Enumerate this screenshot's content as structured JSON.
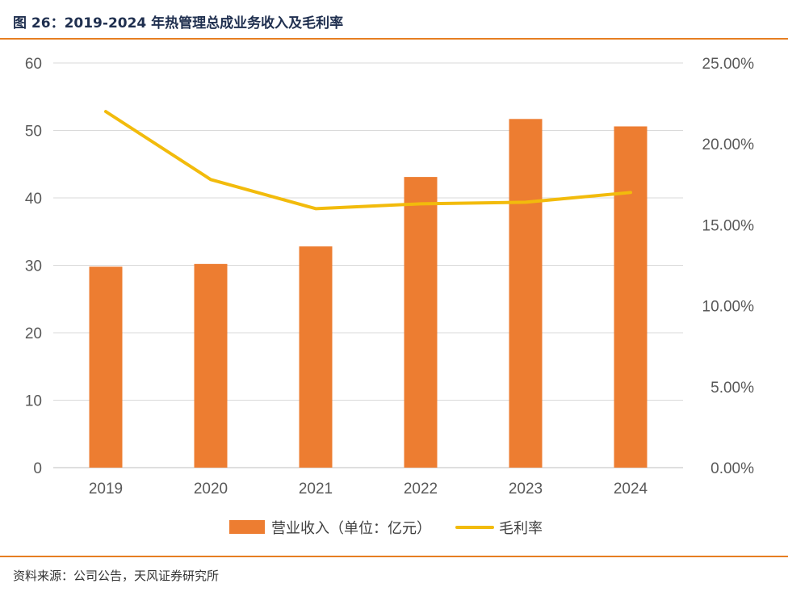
{
  "header": {
    "title": "图 26：2019-2024 年热管理总成业务收入及毛利率"
  },
  "footer": {
    "source": "资料来源：公司公告，天风证券研究所"
  },
  "colors": {
    "bar": "#ed7d31",
    "line": "#f2bb0c",
    "rule": "#e67e22",
    "grid": "#d9d9d9"
  },
  "chart_data": {
    "type": "bar+line",
    "title": "",
    "categories": [
      "2019",
      "2020",
      "2021",
      "2022",
      "2023",
      "2024"
    ],
    "series": [
      {
        "name": "营业收入（单位：亿元）",
        "type": "bar",
        "axis": "left",
        "values": [
          29.8,
          30.2,
          32.8,
          43.1,
          51.7,
          50.6
        ]
      },
      {
        "name": "毛利率",
        "type": "line",
        "axis": "right",
        "values": [
          22.0,
          17.8,
          16.0,
          16.3,
          16.4,
          17.0
        ]
      }
    ],
    "y_left": {
      "min": 0,
      "max": 60,
      "ticks": [
        "0",
        "10",
        "20",
        "30",
        "40",
        "50",
        "60"
      ]
    },
    "y_right": {
      "min": 0,
      "max": 25,
      "ticks": [
        "0.00%",
        "5.00%",
        "10.00%",
        "15.00%",
        "20.00%",
        "25.00%"
      ]
    },
    "grid": true,
    "legend": "bottom"
  }
}
